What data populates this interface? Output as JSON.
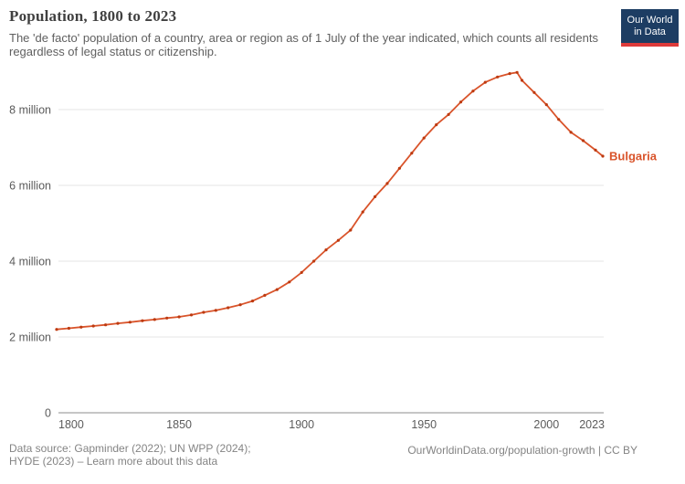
{
  "header": {
    "title": "Population, 1800 to 2023",
    "subtitle": "The 'de facto' population of a country, area or region as of 1 July of the year indicated, which counts all residents regardless of legal status or citizenship.",
    "logo": {
      "line1": "Our World",
      "line2": "in Data"
    }
  },
  "footer": {
    "sources": "Data source: Gapminder (2022); UN WPP (2024); HYDE (2023) – Learn more about this data",
    "url_license": "OurWorldinData.org/population-growth | CC BY"
  },
  "colors": {
    "line": "#d9542b",
    "marker": "#bd3a10",
    "series_label": "#d9542b",
    "grid": "#e4e4e4",
    "axis": "#a5a5a5",
    "tick_text": "#5b5b5b",
    "logo_navy": "#1d3d63",
    "logo_red": "#dd3a3a"
  },
  "chart_data": {
    "type": "line",
    "title": "Population, 1800 to 2023",
    "xlabel": "",
    "ylabel": "",
    "xlim": [
      1800,
      2023
    ],
    "ylim": [
      0,
      9.4
    ],
    "grid": true,
    "legend_position": "end-of-line-label",
    "x_ticks": [
      1800,
      1850,
      1900,
      1950,
      2000,
      2023
    ],
    "y_ticks": [
      {
        "value": 0,
        "label": "0"
      },
      {
        "value": 2,
        "label": "2 million"
      },
      {
        "value": 4,
        "label": "4 million"
      },
      {
        "value": 6,
        "label": "6 million"
      },
      {
        "value": 8,
        "label": "8 million"
      }
    ],
    "series": [
      {
        "name": "Bulgaria",
        "unit": "million people",
        "x": [
          1800,
          1805,
          1810,
          1815,
          1820,
          1825,
          1830,
          1835,
          1840,
          1845,
          1850,
          1855,
          1860,
          1865,
          1870,
          1875,
          1880,
          1885,
          1890,
          1895,
          1900,
          1905,
          1910,
          1915,
          1920,
          1925,
          1930,
          1935,
          1940,
          1945,
          1950,
          1955,
          1960,
          1965,
          1970,
          1975,
          1980,
          1985,
          1988,
          1990,
          1995,
          2000,
          2005,
          2010,
          2015,
          2020,
          2023
        ],
        "values": [
          2.2,
          2.23,
          2.26,
          2.29,
          2.32,
          2.36,
          2.39,
          2.43,
          2.46,
          2.5,
          2.53,
          2.58,
          2.65,
          2.7,
          2.77,
          2.85,
          2.95,
          3.1,
          3.25,
          3.45,
          3.7,
          4.0,
          4.3,
          4.55,
          4.82,
          5.3,
          5.7,
          6.05,
          6.45,
          6.85,
          7.25,
          7.6,
          7.87,
          8.2,
          8.49,
          8.72,
          8.86,
          8.95,
          8.98,
          8.77,
          8.45,
          8.13,
          7.74,
          7.4,
          7.18,
          6.93,
          6.77
        ]
      }
    ]
  }
}
